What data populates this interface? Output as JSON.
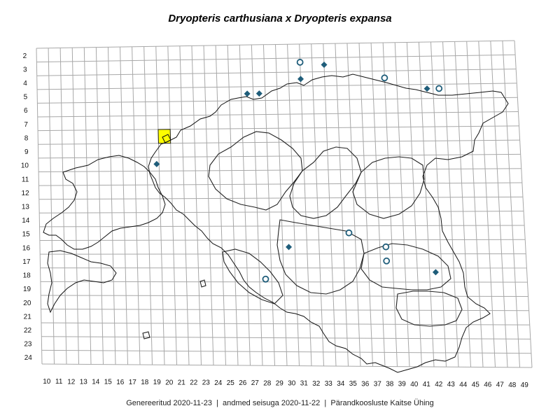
{
  "title": "Dryopteris carthusiana x Dryopteris expansa",
  "footer": {
    "generated": "Genereeritud 2020-11-23",
    "data_state": "andmed seisuga 2020-11-22",
    "source": "Pärandkoosluste Kaitse Ühing",
    "separator": "|"
  },
  "colors": {
    "marker": "#1f5d7a",
    "highlight": "#ffff00",
    "grid": "#a8a8a8",
    "outline": "#111111"
  },
  "grid": {
    "columns": [
      10,
      11,
      12,
      13,
      14,
      15,
      16,
      17,
      18,
      19,
      20,
      21,
      22,
      23,
      24,
      25,
      26,
      27,
      28,
      29,
      30,
      31,
      32,
      33,
      34,
      35,
      36,
      37,
      38,
      39,
      40,
      41,
      42,
      43,
      44,
      45,
      46,
      47,
      48,
      49
    ],
    "rows": [
      2,
      3,
      4,
      5,
      6,
      7,
      8,
      9,
      10,
      11,
      12,
      13,
      14,
      15,
      16,
      17,
      18,
      19,
      20,
      21,
      22,
      23,
      24
    ]
  },
  "highlight_cell": {
    "col": 20,
    "row": 8
  },
  "records": [
    {
      "type": "diamond",
      "col": 27,
      "row": 5
    },
    {
      "type": "diamond",
      "col": 28,
      "row": 5
    },
    {
      "type": "diamond",
      "col": 31.5,
      "row": 4
    },
    {
      "type": "diamond",
      "col": 33.5,
      "row": 3
    },
    {
      "type": "diamond",
      "col": 42,
      "row": 4.8
    },
    {
      "type": "diamond",
      "col": 19.3,
      "row": 10
    },
    {
      "type": "diamond",
      "col": 30,
      "row": 16
    },
    {
      "type": "diamond",
      "col": 42,
      "row": 17.8
    },
    {
      "type": "circle",
      "col": 31.5,
      "row": 2.8
    },
    {
      "type": "circle",
      "col": 38.5,
      "row": 4
    },
    {
      "type": "circle",
      "col": 43,
      "row": 4.8
    },
    {
      "type": "circle",
      "col": 35,
      "row": 15
    },
    {
      "type": "circle",
      "col": 38,
      "row": 16
    },
    {
      "type": "circle",
      "col": 38,
      "row": 17
    },
    {
      "type": "circle",
      "col": 28,
      "row": 18.3
    }
  ]
}
